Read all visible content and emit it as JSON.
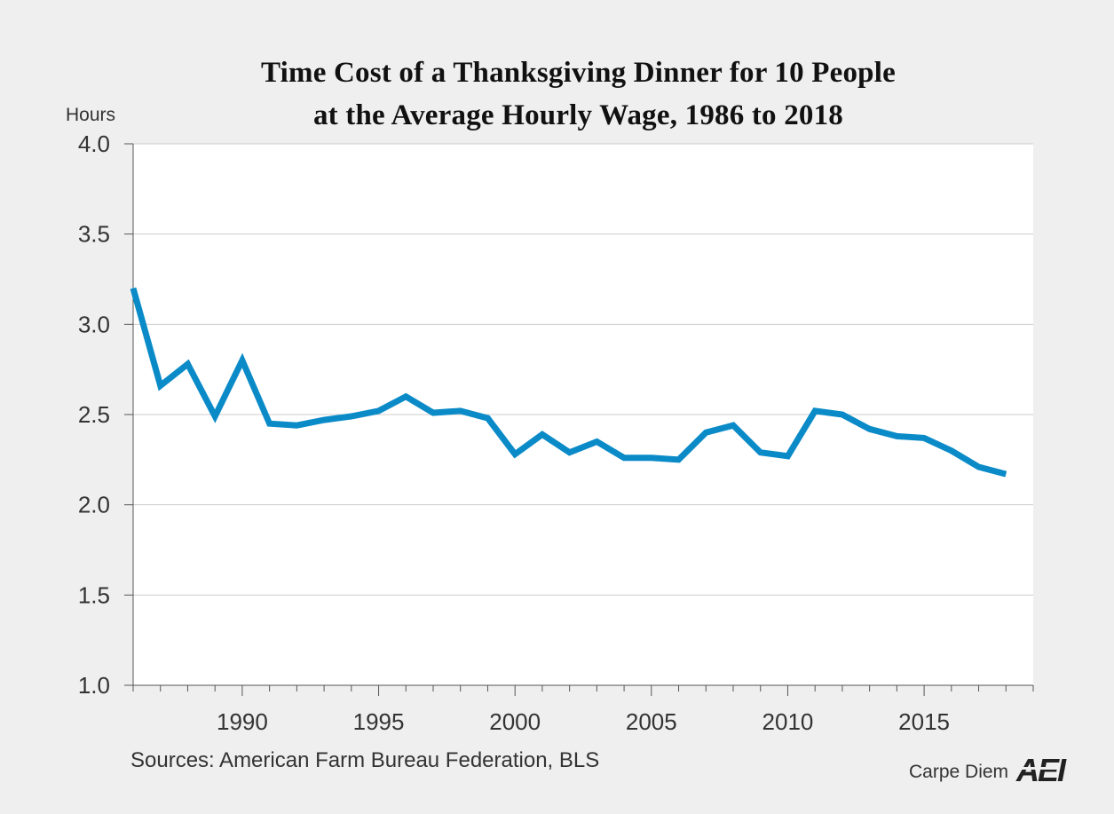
{
  "chart_data": {
    "type": "line",
    "title_lines": [
      "Time Cost of a Thanksgiving Dinner for 10 People",
      "at the Average Hourly Wage, 1986 to 2018"
    ],
    "ylabel": "Hours",
    "xlabel": "",
    "ylim": [
      1.0,
      4.0
    ],
    "xlim": [
      1986,
      2019
    ],
    "y_ticks": [
      "1.0",
      "1.5",
      "2.0",
      "2.5",
      "3.0",
      "3.5",
      "4.0"
    ],
    "y_tick_values": [
      1.0,
      1.5,
      2.0,
      2.5,
      3.0,
      3.5,
      4.0
    ],
    "x_tick_labels": [
      "1990",
      "1995",
      "2000",
      "2005",
      "2010",
      "2015"
    ],
    "x_tick_values": [
      1990,
      1995,
      2000,
      2005,
      2010,
      2015
    ],
    "grid": true,
    "series": [
      {
        "name": "Time Cost (hours)",
        "color": "#0a8bc8",
        "x": [
          1986,
          1987,
          1988,
          1989,
          1990,
          1991,
          1992,
          1993,
          1994,
          1995,
          1996,
          1997,
          1998,
          1999,
          2000,
          2001,
          2002,
          2003,
          2004,
          2005,
          2006,
          2007,
          2008,
          2009,
          2010,
          2011,
          2012,
          2013,
          2014,
          2015,
          2016,
          2017,
          2018
        ],
        "values": [
          3.2,
          2.66,
          2.78,
          2.49,
          2.8,
          2.45,
          2.44,
          2.47,
          2.49,
          2.52,
          2.6,
          2.51,
          2.52,
          2.48,
          2.28,
          2.39,
          2.29,
          2.35,
          2.26,
          2.26,
          2.25,
          2.4,
          2.44,
          2.29,
          2.27,
          2.52,
          2.5,
          2.42,
          2.38,
          2.37,
          2.3,
          2.21,
          2.17
        ]
      }
    ]
  },
  "footer": {
    "source": "Sources: American Farm Bureau Federation, BLS",
    "brand": "Carpe Diem",
    "logo_text": "AEI"
  },
  "colors": {
    "background": "#efefef",
    "plot_background": "#ffffff",
    "line": "#0a8bc8",
    "grid": "#cccccc"
  }
}
